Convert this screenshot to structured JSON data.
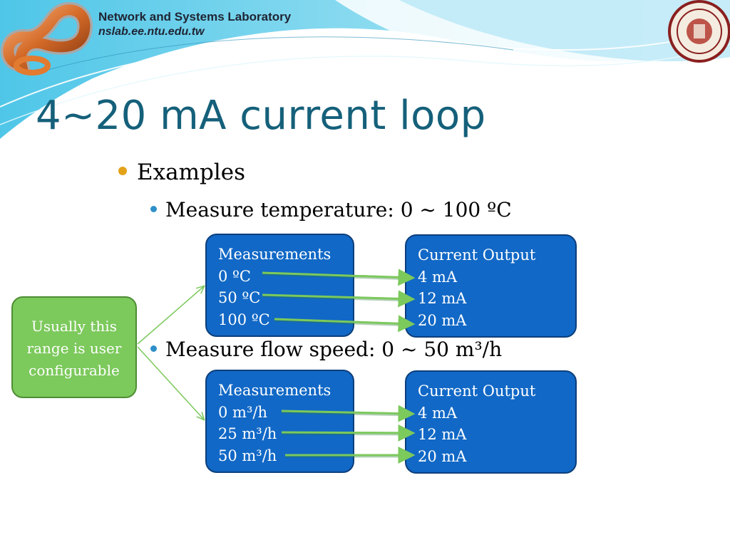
{
  "header": {
    "lab_name": "Network and Systems Laboratory",
    "lab_url": "nslab.ee.ntu.edu.tw",
    "logo_icon": "nslab-infinity-logo-icon",
    "seal_icon": "ntu-seal-icon"
  },
  "title": "4~20 mA current loop",
  "bullets": {
    "examples": "Examples",
    "temperature": "Measure temperature: 0 ~ 100 ºC",
    "flow": "Measure flow speed: 0 ~ 50 m³/h"
  },
  "note": {
    "lines": [
      "Usually this",
      "range is user",
      "configurable"
    ]
  },
  "temperature_mapping": {
    "measurements_header": "Measurements",
    "measurements": [
      "0 ºC",
      "50 ºC",
      "100 ºC"
    ],
    "output_header": "Current Output",
    "outputs": [
      "4 mA",
      "12 mA",
      "20 mA"
    ]
  },
  "flow_mapping": {
    "measurements_header": "Measurements",
    "measurements": [
      "0 m³/h",
      "25 m³/h",
      "50 m³/h"
    ],
    "output_header": "Current Output",
    "outputs": [
      "4 mA",
      "12 mA",
      "20 mA"
    ]
  },
  "colors": {
    "title": "#15607a",
    "box_fill": "#1168c6",
    "note_fill": "#7cc95c",
    "arrow": "#7cc95c",
    "bullet_primary": "#e3a21a",
    "bullet_secondary": "#2f8fc9"
  }
}
